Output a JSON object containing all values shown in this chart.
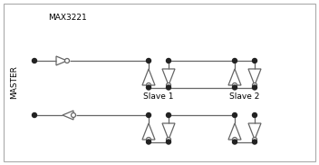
{
  "bg_color": "#ffffff",
  "line_color": "#666666",
  "text_color": "#000000",
  "master_label": "MASTER",
  "chip_label": "MAX3221",
  "slave1_label": "Slave 1",
  "slave2_label": "Slave 2",
  "figsize": [
    3.52,
    1.82
  ],
  "dpi": 100,
  "border_color": "#aaaaaa",
  "dot_color": "#222222",
  "tri_color": "#666666"
}
